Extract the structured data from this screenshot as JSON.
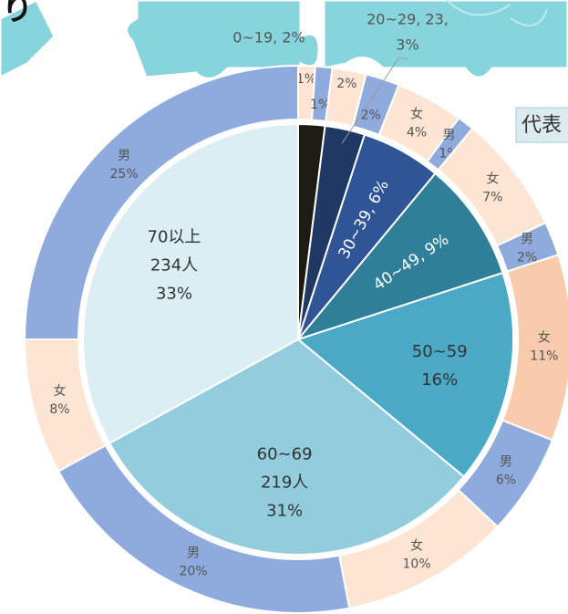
{
  "chart_data": {
    "type": "sunburst",
    "annotations": [
      "り",
      "代表"
    ],
    "inner": {
      "labels": [
        [
          "0~19, 2%"
        ],
        [
          "20~29, 23,",
          "3%"
        ],
        [
          "30~39, 6%"
        ],
        [
          "40~49, 9%"
        ],
        [
          "50~59",
          "16%"
        ],
        [
          "60~69",
          "219人",
          "31%"
        ],
        [
          "70以上",
          "234人",
          "33%"
        ]
      ],
      "values": [
        2,
        3,
        6,
        9,
        16,
        31,
        33
      ],
      "colors": [
        "#1e1a14",
        "#1f3864",
        "#2f5597",
        "#2e7f97",
        "#4aaac6",
        "#93cddd",
        "#daeef3"
      ]
    },
    "outer": {
      "labels": [
        [
          "1%"
        ],
        [
          "1%"
        ],
        [
          "2%"
        ],
        [
          "2%"
        ],
        [
          "女",
          "4%"
        ],
        [
          "男",
          "1%"
        ],
        [
          "女",
          "7%"
        ],
        [
          "男",
          "2%"
        ],
        [
          "女",
          "11%"
        ],
        [
          "男",
          "6%"
        ],
        [
          "女",
          "10%"
        ],
        [
          "男",
          "20%"
        ],
        [
          "女",
          "8%"
        ],
        [
          "男",
          "25%"
        ]
      ],
      "values": [
        1,
        1,
        2,
        2,
        4,
        1,
        7,
        2,
        11,
        6,
        10,
        20,
        8,
        25
      ],
      "colors": [
        "#fde5d4",
        "#8faadc",
        "#fde5d4",
        "#8faadc",
        "#fde5d4",
        "#8faadc",
        "#fde5d4",
        "#8faadc",
        "#f8cbad",
        "#8faadc",
        "#fde5d4",
        "#8faadc",
        "#fde5d4",
        "#8faadc"
      ]
    }
  }
}
